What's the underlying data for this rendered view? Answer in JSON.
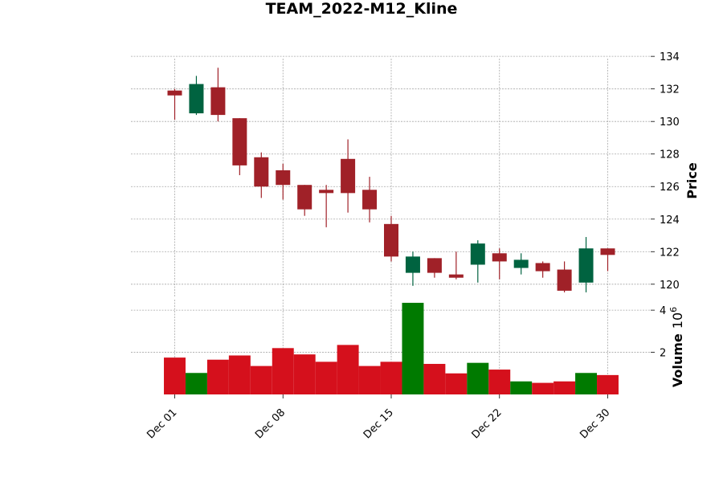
{
  "chart_data": {
    "type": "candlestick",
    "title": "TEAM_2022-M12_Kline",
    "price_label": "Price",
    "volume_label": "Volume",
    "volume_exponent_base": "10",
    "volume_exponent": "6",
    "price_ylim": [
      119.2,
      134.6
    ],
    "price_ticks": [
      120,
      122,
      124,
      126,
      128,
      130,
      132,
      134
    ],
    "volume_ylim": [
      0,
      4.5
    ],
    "volume_ticks": [
      2,
      4
    ],
    "x_tick_labels": [
      {
        "index": 0,
        "label": "Dec 01"
      },
      {
        "index": 5,
        "label": "Dec 08"
      },
      {
        "index": 10,
        "label": "Dec 15"
      },
      {
        "index": 15,
        "label": "Dec 22"
      },
      {
        "index": 20,
        "label": "Dec 30"
      }
    ],
    "colors": {
      "up_candle": "#006340",
      "down_candle": "#a02128",
      "up_volume": "#007a00",
      "down_volume": "#d5101c",
      "grid": "#a8a8a8"
    },
    "candles": [
      {
        "date": "2022-12-01",
        "open": 131.9,
        "high": 132.0,
        "low": 130.1,
        "close": 131.6,
        "volume": 1.75
      },
      {
        "date": "2022-12-02",
        "open": 130.5,
        "high": 132.8,
        "low": 130.4,
        "close": 132.3,
        "volume": 1.02
      },
      {
        "date": "2022-12-05",
        "open": 132.1,
        "high": 133.3,
        "low": 130.0,
        "close": 130.4,
        "volume": 1.65
      },
      {
        "date": "2022-12-06",
        "open": 130.2,
        "high": 130.2,
        "low": 126.7,
        "close": 127.3,
        "volume": 1.85
      },
      {
        "date": "2022-12-07",
        "open": 127.8,
        "high": 128.1,
        "low": 125.3,
        "close": 126.0,
        "volume": 1.35
      },
      {
        "date": "2022-12-08",
        "open": 127.0,
        "high": 127.4,
        "low": 125.2,
        "close": 126.1,
        "volume": 2.2
      },
      {
        "date": "2022-12-09",
        "open": 126.1,
        "high": 126.1,
        "low": 124.2,
        "close": 124.6,
        "volume": 1.9
      },
      {
        "date": "2022-12-12",
        "open": 125.8,
        "high": 126.1,
        "low": 123.5,
        "close": 125.6,
        "volume": 1.55
      },
      {
        "date": "2022-12-13",
        "open": 127.7,
        "high": 128.9,
        "low": 124.4,
        "close": 125.6,
        "volume": 2.35
      },
      {
        "date": "2022-12-14",
        "open": 125.8,
        "high": 126.6,
        "low": 123.8,
        "close": 124.6,
        "volume": 1.35
      },
      {
        "date": "2022-12-15",
        "open": 123.7,
        "high": 124.2,
        "low": 121.4,
        "close": 121.7,
        "volume": 1.55
      },
      {
        "date": "2022-12-16",
        "open": 120.7,
        "high": 122.0,
        "low": 119.9,
        "close": 121.7,
        "volume": 4.35
      },
      {
        "date": "2022-12-19",
        "open": 121.6,
        "high": 121.6,
        "low": 120.4,
        "close": 120.7,
        "volume": 1.45
      },
      {
        "date": "2022-12-20",
        "open": 120.6,
        "high": 122.0,
        "low": 120.3,
        "close": 120.4,
        "volume": 1.0
      },
      {
        "date": "2022-12-21",
        "open": 121.2,
        "high": 122.7,
        "low": 120.1,
        "close": 122.5,
        "volume": 1.5
      },
      {
        "date": "2022-12-22",
        "open": 121.9,
        "high": 122.2,
        "low": 120.3,
        "close": 121.4,
        "volume": 1.18
      },
      {
        "date": "2022-12-23",
        "open": 121.0,
        "high": 121.9,
        "low": 120.6,
        "close": 121.5,
        "volume": 0.62
      },
      {
        "date": "2022-12-27",
        "open": 121.3,
        "high": 121.4,
        "low": 120.4,
        "close": 120.8,
        "volume": 0.55
      },
      {
        "date": "2022-12-28",
        "open": 120.9,
        "high": 121.4,
        "low": 119.5,
        "close": 119.6,
        "volume": 0.62
      },
      {
        "date": "2022-12-29",
        "open": 120.1,
        "high": 122.9,
        "low": 119.5,
        "close": 122.2,
        "volume": 1.02
      },
      {
        "date": "2022-12-30",
        "open": 122.2,
        "high": 122.2,
        "low": 120.8,
        "close": 121.8,
        "volume": 0.92
      }
    ]
  }
}
